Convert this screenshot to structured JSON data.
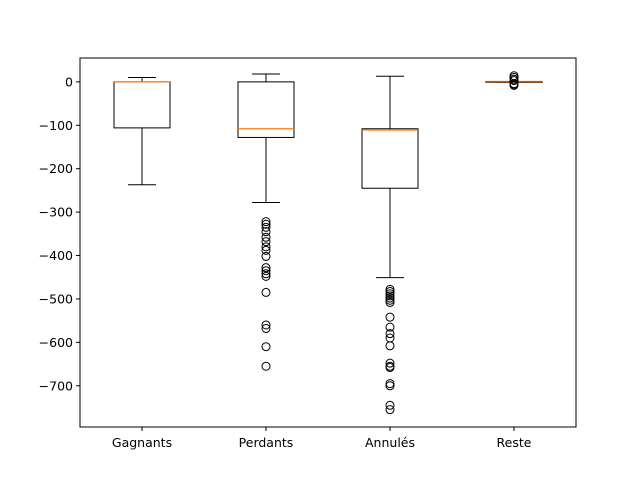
{
  "chart_data": {
    "type": "boxplot",
    "title": "",
    "xlabel": "",
    "ylabel": "",
    "ylim": [
      -795,
      55
    ],
    "yticks": [
      0,
      -100,
      -200,
      -300,
      -400,
      -500,
      -600,
      -700
    ],
    "ytick_labels": [
      "0",
      "−100",
      "−200",
      "−300",
      "−400",
      "−500",
      "−600",
      "−700"
    ],
    "categories": [
      "Gagnants",
      "Perdants",
      "Annulés",
      "Reste"
    ],
    "colors": {
      "box": "#000000",
      "median": "#ff7f0e",
      "outlier": "#000000"
    },
    "boxes": [
      {
        "label": "Gagnants",
        "whisker_low": -237,
        "q1": -106,
        "median": 0,
        "q3": 0,
        "whisker_high": 10,
        "outliers": []
      },
      {
        "label": "Perdants",
        "whisker_low": -278,
        "q1": -128,
        "median": -108,
        "q3": 0,
        "whisker_high": 18,
        "outliers": [
          -322,
          -328,
          -335,
          -345,
          -358,
          -368,
          -380,
          -388,
          -402,
          -428,
          -435,
          -442,
          -448,
          -485,
          -560,
          -568,
          -610,
          -655
        ]
      },
      {
        "label": "Annulés",
        "whisker_low": -451,
        "q1": -245,
        "median": -111,
        "q3": -108,
        "whisker_high": 13,
        "outliers": [
          -478,
          -483,
          -488,
          -493,
          -498,
          -503,
          -508,
          -542,
          -565,
          -580,
          -590,
          -608,
          -648,
          -655,
          -658,
          -695,
          -700,
          -745,
          -755
        ]
      },
      {
        "label": "Reste",
        "whisker_low": -1,
        "q1": -1,
        "median": 0,
        "q3": 1,
        "whisker_high": 1,
        "outliers": [
          -8,
          -6,
          -4,
          3,
          6,
          10,
          14
        ]
      }
    ]
  }
}
